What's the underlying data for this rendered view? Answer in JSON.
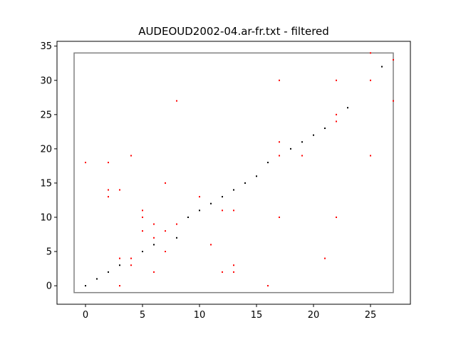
{
  "chart_data": {
    "type": "scatter",
    "title": "AUDEOUD2002-04.ar-fr.txt - filtered",
    "xlabel": "",
    "ylabel": "",
    "xlim": [
      -2.5,
      28.5
    ],
    "ylim": [
      -2.7,
      35.7
    ],
    "xticks": [
      0,
      5,
      10,
      15,
      20,
      25
    ],
    "yticks": [
      0,
      5,
      10,
      15,
      20,
      25,
      30,
      35
    ],
    "grid": false,
    "box": {
      "x0": -1,
      "x1": 27,
      "y0": -1,
      "y1": 34,
      "color": "#808080"
    },
    "series": [
      {
        "color": "#000000",
        "points": [
          [
            0,
            0
          ],
          [
            1,
            1
          ],
          [
            2,
            2
          ],
          [
            3,
            3
          ],
          [
            5,
            5
          ],
          [
            6,
            6
          ],
          [
            8,
            7
          ],
          [
            9,
            10
          ],
          [
            10,
            11
          ],
          [
            11,
            12
          ],
          [
            12,
            13
          ],
          [
            13,
            14
          ],
          [
            14,
            15
          ],
          [
            15,
            16
          ],
          [
            16,
            18
          ],
          [
            18,
            20
          ],
          [
            19,
            21
          ],
          [
            20,
            22
          ],
          [
            21,
            23
          ],
          [
            23,
            26
          ],
          [
            26,
            32
          ]
        ]
      },
      {
        "color": "#ff0000",
        "points": [
          [
            0,
            18
          ],
          [
            2,
            18
          ],
          [
            2,
            14
          ],
          [
            2,
            13
          ],
          [
            3,
            14
          ],
          [
            3,
            4
          ],
          [
            3,
            0
          ],
          [
            4,
            19
          ],
          [
            4,
            4
          ],
          [
            4,
            3
          ],
          [
            5,
            11
          ],
          [
            5,
            10
          ],
          [
            5,
            8
          ],
          [
            6,
            9
          ],
          [
            6,
            7
          ],
          [
            6,
            2
          ],
          [
            7,
            15
          ],
          [
            7,
            8
          ],
          [
            7,
            5
          ],
          [
            8,
            27
          ],
          [
            8,
            9
          ],
          [
            10,
            13
          ],
          [
            11,
            6
          ],
          [
            12,
            11
          ],
          [
            12,
            2
          ],
          [
            13,
            11
          ],
          [
            13,
            3
          ],
          [
            13,
            2
          ],
          [
            16,
            0
          ],
          [
            17,
            30
          ],
          [
            17,
            21
          ],
          [
            17,
            19
          ],
          [
            17,
            10
          ],
          [
            19,
            19
          ],
          [
            21,
            4
          ],
          [
            22,
            30
          ],
          [
            22,
            25
          ],
          [
            22,
            24
          ],
          [
            22,
            10
          ],
          [
            25,
            34
          ],
          [
            25,
            30
          ],
          [
            25,
            19
          ],
          [
            27,
            33
          ],
          [
            27,
            27
          ]
        ]
      }
    ]
  }
}
